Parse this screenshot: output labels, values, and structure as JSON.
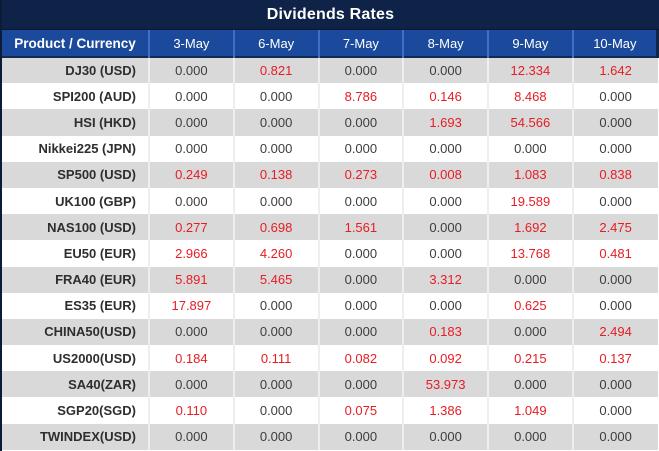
{
  "title": "Dividends Rates",
  "colors": {
    "title_bg": "#0e2347",
    "header_bg": "#1b4a9c",
    "header_divider": "#3f70c4",
    "row_alt_gray": "#d9d9d9",
    "row_white": "#ffffff",
    "value_black": "#3d3d3d",
    "value_red": "#e81c24"
  },
  "table": {
    "columns": [
      "Product / Currency",
      "3-May",
      "6-May",
      "7-May",
      "8-May",
      "9-May",
      "10-May"
    ],
    "rows": [
      {
        "product": "DJ30 (USD)",
        "values": [
          "0.000",
          "0.821",
          "0.000",
          "0.000",
          "12.334",
          "1.642"
        ]
      },
      {
        "product": "SPI200 (AUD)",
        "values": [
          "0.000",
          "0.000",
          "8.786",
          "0.146",
          "8.468",
          "0.000"
        ]
      },
      {
        "product": "HSI (HKD)",
        "values": [
          "0.000",
          "0.000",
          "0.000",
          "1.693",
          "54.566",
          "0.000"
        ]
      },
      {
        "product": "Nikkei225 (JPN)",
        "values": [
          "0.000",
          "0.000",
          "0.000",
          "0.000",
          "0.000",
          "0.000"
        ]
      },
      {
        "product": "SP500 (USD)",
        "values": [
          "0.249",
          "0.138",
          "0.273",
          "0.008",
          "1.083",
          "0.838"
        ]
      },
      {
        "product": "UK100 (GBP)",
        "values": [
          "0.000",
          "0.000",
          "0.000",
          "0.000",
          "19.589",
          "0.000"
        ]
      },
      {
        "product": "NAS100 (USD)",
        "values": [
          "0.277",
          "0.698",
          "1.561",
          "0.000",
          "1.692",
          "2.475"
        ]
      },
      {
        "product": "EU50 (EUR)",
        "values": [
          "2.966",
          "4.260",
          "0.000",
          "0.000",
          "13.768",
          "0.481"
        ]
      },
      {
        "product": "FRA40 (EUR)",
        "values": [
          "5.891",
          "5.465",
          "0.000",
          "3.312",
          "0.000",
          "0.000"
        ]
      },
      {
        "product": "ES35 (EUR)",
        "values": [
          "17.897",
          "0.000",
          "0.000",
          "0.000",
          "0.625",
          "0.000"
        ]
      },
      {
        "product": "CHINA50(USD)",
        "values": [
          "0.000",
          "0.000",
          "0.000",
          "0.183",
          "0.000",
          "2.494"
        ]
      },
      {
        "product": "US2000(USD)",
        "values": [
          "0.184",
          "0.111",
          "0.082",
          "0.092",
          "0.215",
          "0.137"
        ]
      },
      {
        "product": "SA40(ZAR)",
        "values": [
          "0.000",
          "0.000",
          "0.000",
          "53.973",
          "0.000",
          "0.000"
        ]
      },
      {
        "product": "SGP20(SGD)",
        "values": [
          "0.110",
          "0.000",
          "0.075",
          "1.386",
          "1.049",
          "0.000"
        ]
      },
      {
        "product": "TWINDEX(USD)",
        "values": [
          "0.000",
          "0.000",
          "0.000",
          "0.000",
          "0.000",
          "0.000"
        ]
      }
    ]
  }
}
